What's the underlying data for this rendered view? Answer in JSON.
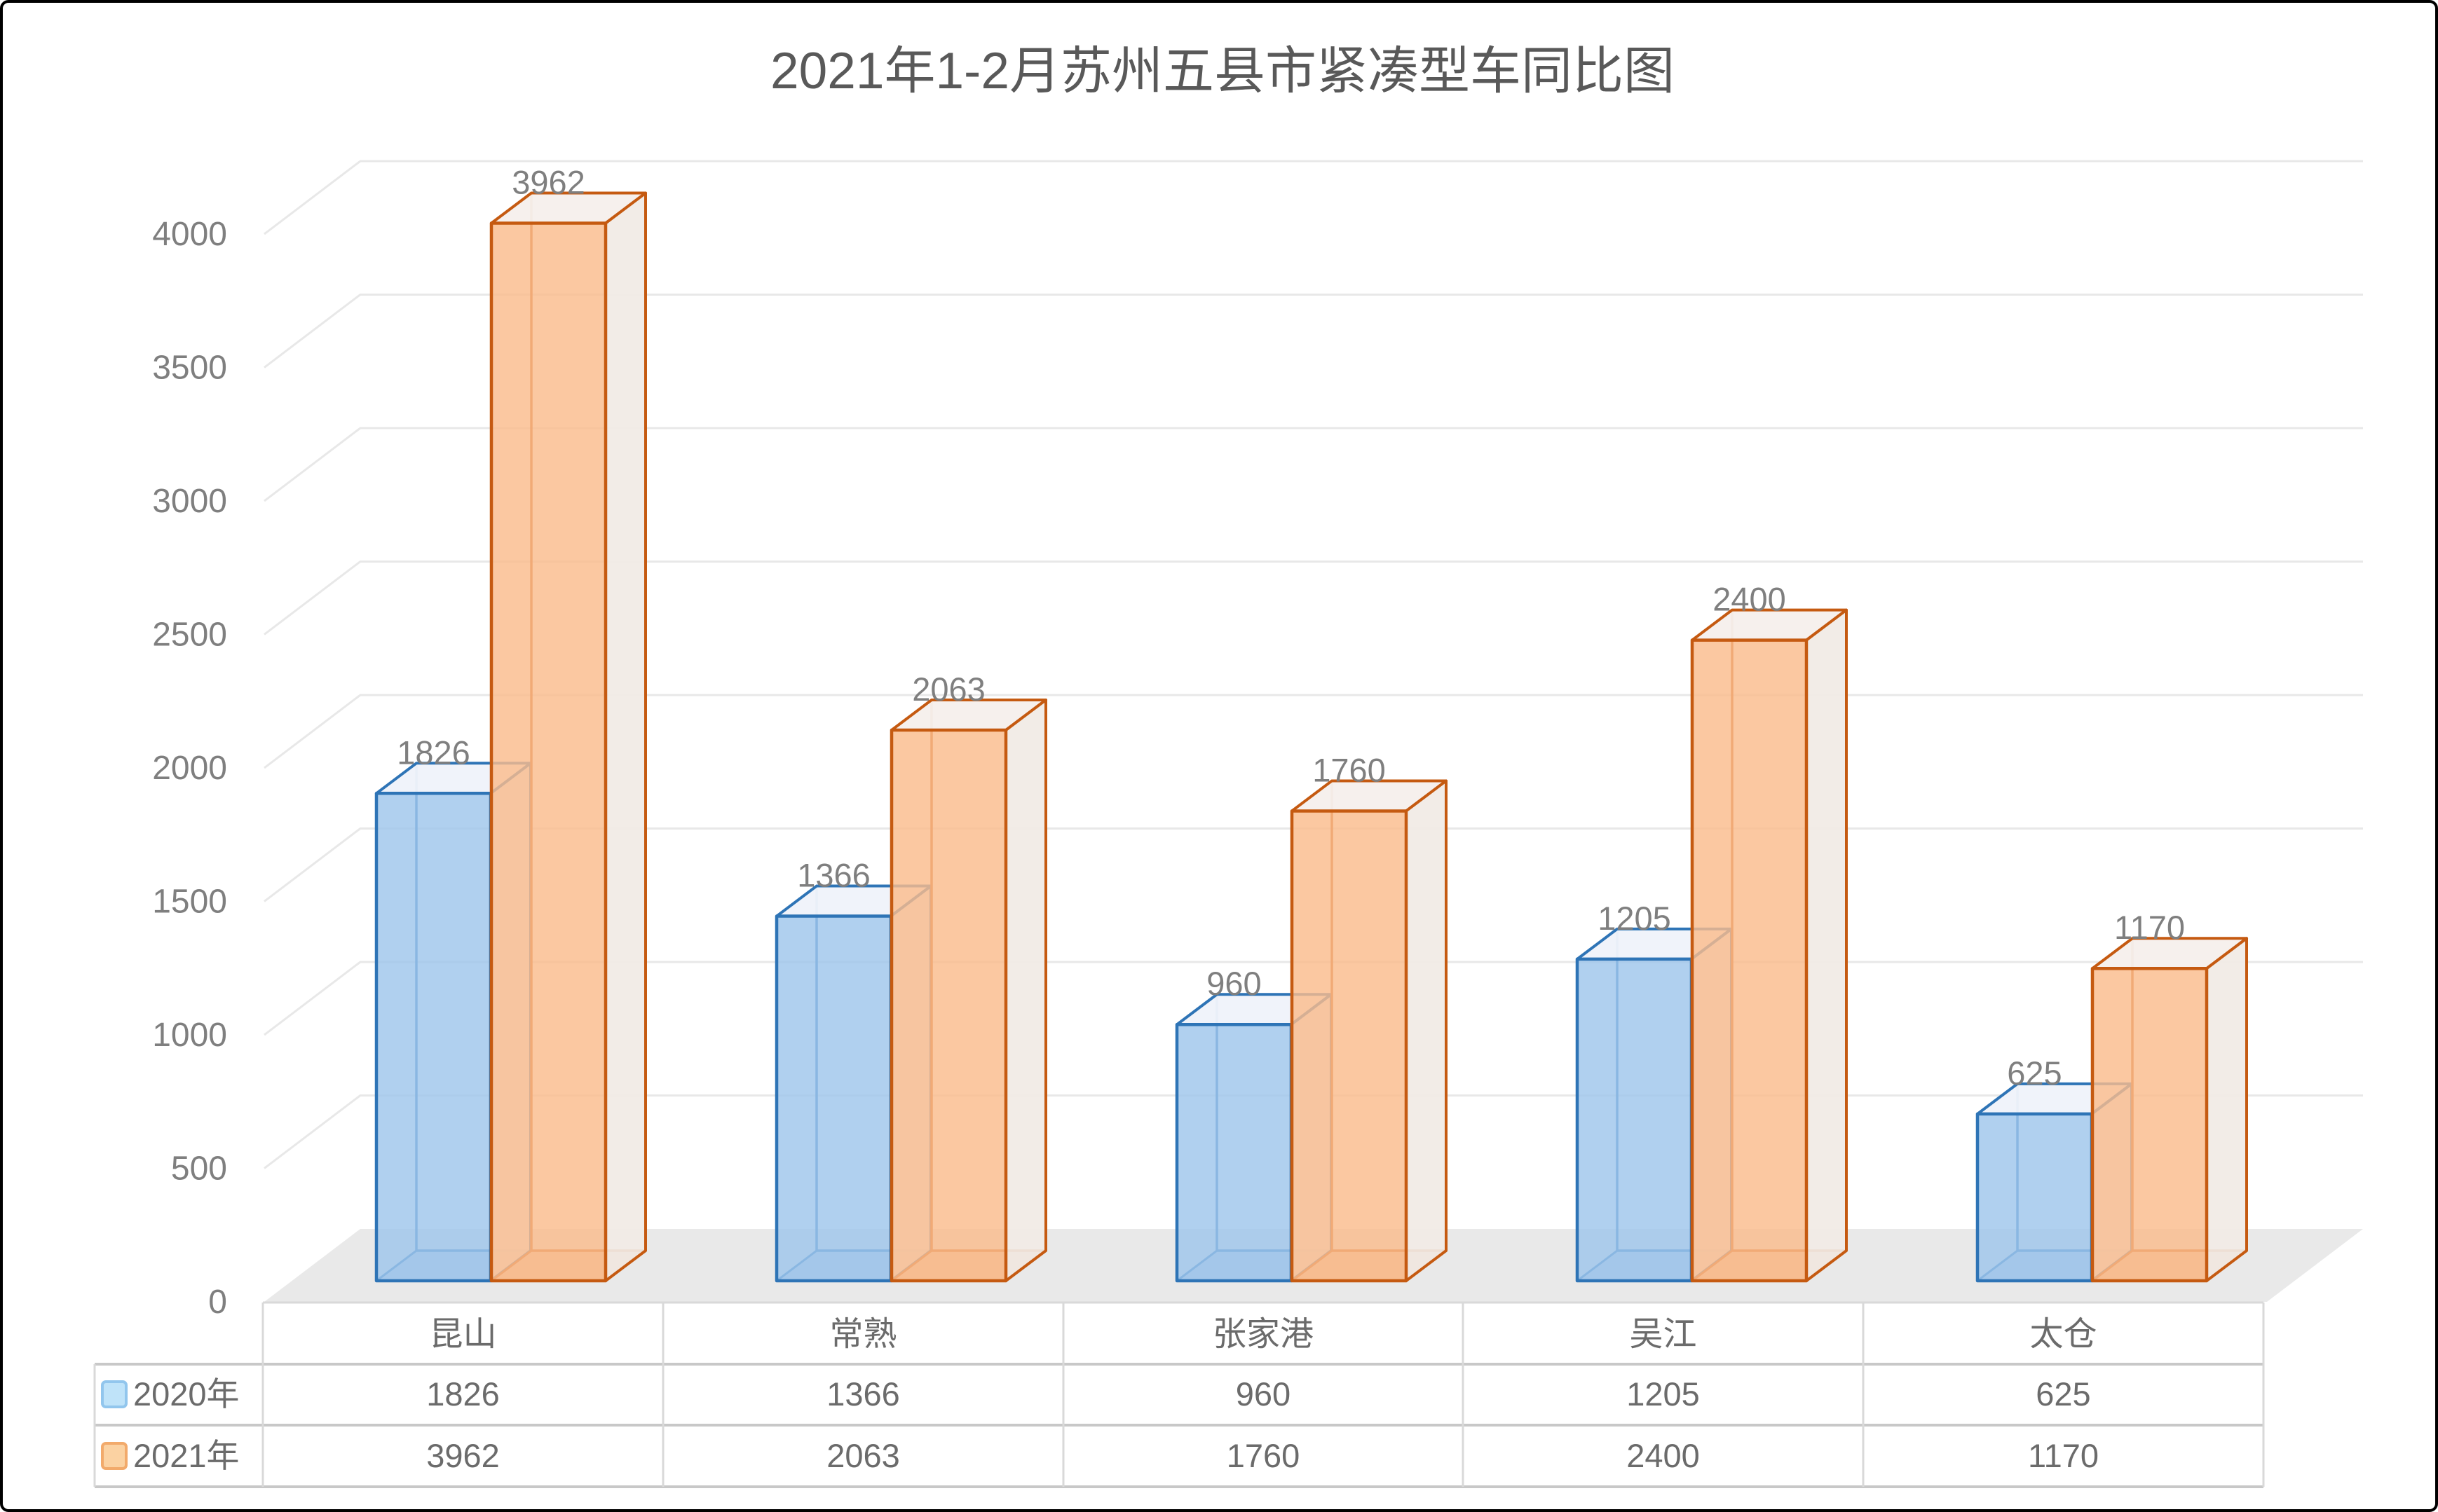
{
  "title": "2021年1-2月苏州五县市紧凑型车同比图",
  "chart_data": {
    "type": "bar",
    "variant": "3d-clustered-column",
    "title": "2021年1-2月苏州五县市紧凑型车同比图",
    "categories": [
      "昆山",
      "常熟",
      "张家港",
      "吴江",
      "太仓"
    ],
    "series": [
      {
        "name": "2020年",
        "values": [
          1826,
          1366,
          960,
          1205,
          625
        ],
        "fill": "#9FC6EC",
        "edge": "#2E74B6",
        "top_face": "#EFF3FA",
        "side_face": "#E7EDF6",
        "bottom_face": "#8FB4DC",
        "swatch_fill": "#BFE3F9",
        "swatch_edge": "#92C6ED"
      },
      {
        "name": "2021年",
        "values": [
          3962,
          2063,
          1760,
          2400,
          1170
        ],
        "fill": "#FABC8C",
        "edge": "#C55A11",
        "top_face": "#F6F0EC",
        "side_face": "#F1EAE5",
        "bottom_face": "#E19A64",
        "swatch_fill": "#FBD2A2",
        "swatch_edge": "#F2AA6B"
      }
    ],
    "y_axis": {
      "min": 0,
      "max": 4000,
      "ticks": [
        0,
        500,
        1000,
        1500,
        2000,
        2500,
        3000,
        3500,
        4000
      ]
    },
    "gridlines": true,
    "data_labels": true,
    "legend_position": "data-table-left",
    "data_table_shown": true
  },
  "style": {
    "title_color": "#595959",
    "value_label_color": "#7F7F7F",
    "tick_label_color": "#7F7F7F",
    "table_text_color": "#6B6B6B",
    "gridline_color": "#E8E8E8",
    "floor_color": "#E9E9E9",
    "table_border_horizontal": "#C8C8C8",
    "table_border_vertical": "#D9D9D9",
    "background": "#FFFFFF",
    "frame_border": "#000000"
  }
}
